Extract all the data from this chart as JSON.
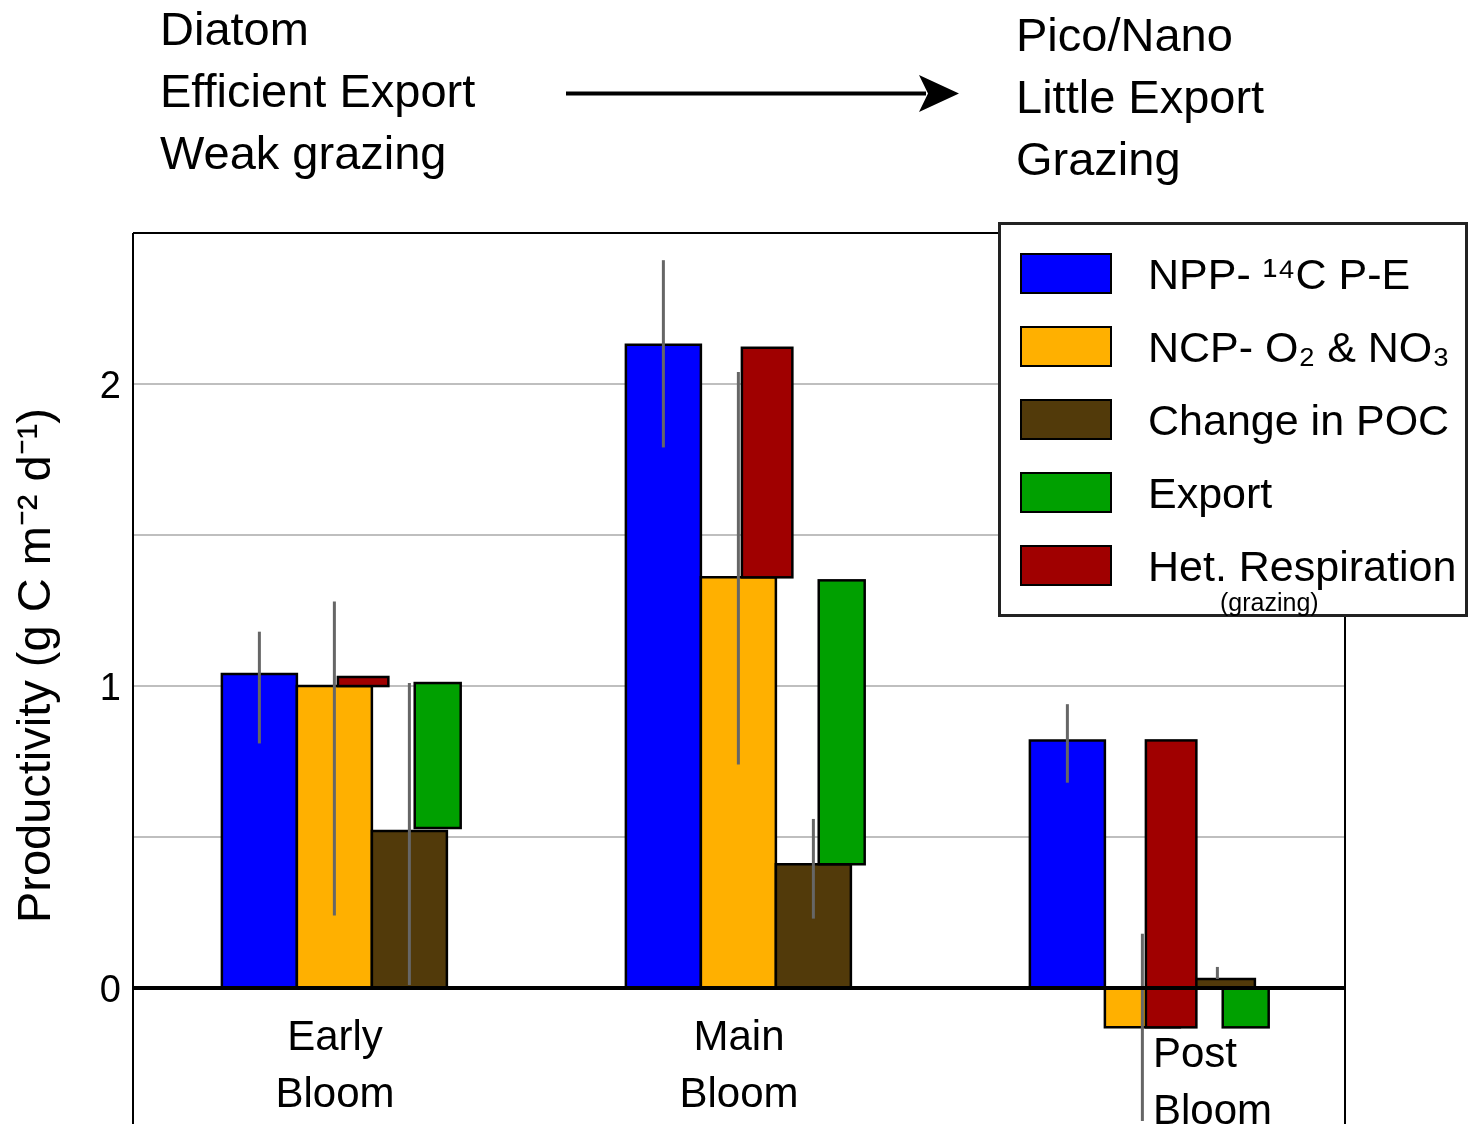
{
  "chart_data": {
    "type": "bar",
    "annotations": [
      "Diatom\nEfficient Export\nWeak grazing",
      "Pico/Nano\nLittle Export\nGrazing"
    ],
    "ylabel": "Productivity (g C m⁻² d⁻¹)",
    "categories": [
      "Early Bloom",
      "Main Bloom",
      "Post Bloom"
    ],
    "series": [
      {
        "name": "NPP- ¹⁴C P-E",
        "color": "#0000ff",
        "values": [
          1.04,
          2.13,
          0.82
        ],
        "errors": [
          [
            0.81,
            1.18
          ],
          [
            1.79,
            2.41
          ],
          [
            0.68,
            0.94
          ]
        ]
      },
      {
        "name": "NCP- O₂ & NO₃",
        "color": "#ffb000",
        "values": [
          1.0,
          1.36,
          -0.13
        ],
        "errors": [
          [
            0.24,
            1.28
          ],
          [
            0.74,
            2.04
          ],
          [
            -0.44,
            0.18
          ]
        ]
      },
      {
        "name": "Change in POC",
        "color": "#523a0a",
        "values": [
          0.52,
          0.41,
          0.03
        ],
        "errors": [
          [
            0.01,
            1.01
          ],
          [
            0.23,
            0.56
          ],
          [
            0.03,
            0.07
          ]
        ]
      },
      {
        "name": "Export",
        "color": "#00a000",
        "values": [
          0.48,
          0.94,
          -0.13
        ],
        "base": [
          0.53,
          0.41,
          0
        ]
      },
      {
        "name": "Het. Respiration (grazing)",
        "color": "#a00000",
        "values": [
          0.03,
          0.76,
          0.95
        ],
        "base": [
          1.0,
          1.36,
          -0.13
        ]
      }
    ],
    "ylim": [
      -0.45,
      2.5
    ],
    "yticks": [
      0,
      {
        "value": 0.5,
        "label": null
      },
      1,
      {
        "value": 1.5,
        "label": null
      },
      2
    ],
    "grid": "y",
    "legend": "top right",
    "ref_lines": [
      {
        "axis": "y",
        "value": 0,
        "color": "#000000"
      }
    ]
  }
}
